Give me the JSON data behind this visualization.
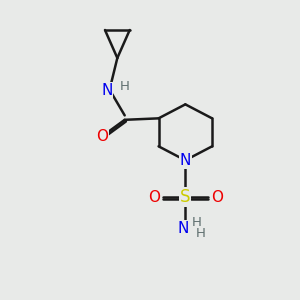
{
  "background_color": "#e8eae8",
  "bond_color": "#1a1a1a",
  "atom_colors": {
    "N": "#0000ee",
    "O": "#ee0000",
    "S": "#cccc00",
    "H": "#607070",
    "C": "#1a1a1a"
  },
  "figsize": [
    3.0,
    3.0
  ],
  "dpi": 100
}
